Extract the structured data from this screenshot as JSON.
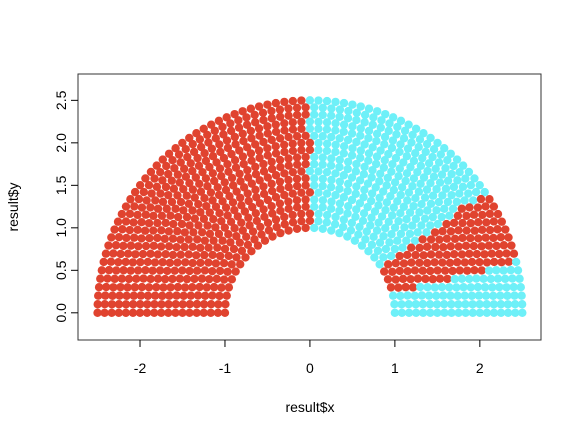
{
  "chart_data": {
    "type": "parliament",
    "xlabel": "result$x",
    "ylabel": "result$y",
    "xlim": [
      -2.73,
      2.72
    ],
    "ylim": [
      -0.32,
      2.81
    ],
    "xticks": [
      -2,
      -1,
      0,
      1,
      2
    ],
    "yticks": [
      {
        "value": 0,
        "label": "0.0"
      },
      0.5,
      {
        "value": 1,
        "label": "1.0"
      },
      1.5,
      {
        "value": 2,
        "label": "2.0"
      },
      2.5
    ],
    "arc_radii": [
      1,
      1.083,
      1.167,
      1.25,
      1.333,
      1.417,
      1.5,
      1.583,
      1.667,
      1.75,
      1.833,
      1.917,
      2,
      2.083,
      2.167,
      2.25,
      2.333,
      2.417,
      2.5
    ],
    "arc_seats": [
      32,
      35,
      37,
      40,
      42,
      45,
      48,
      50,
      53,
      56,
      58,
      61,
      63,
      66,
      69,
      71,
      74,
      76,
      79
    ],
    "parties": [
      {
        "color": "#e0432f",
        "seats": 528
      },
      {
        "color": "#6ef0f8",
        "seats": 322
      },
      {
        "color": "#e0432f",
        "seats": 117
      },
      {
        "color": "#6ef0f8",
        "seats": 88
      }
    ]
  }
}
